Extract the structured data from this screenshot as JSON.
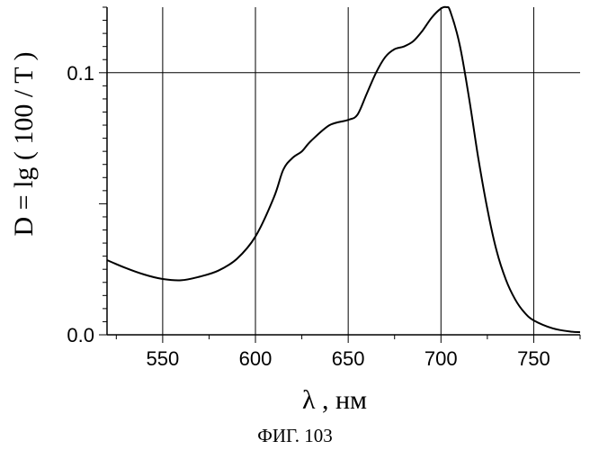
{
  "chart_data": {
    "type": "line",
    "xlabel": "λ , нм",
    "ylabel": "D = lg ( 100 / T )",
    "xlim": [
      520,
      775
    ],
    "ylim": [
      0.0,
      0.125
    ],
    "x_ticks": [
      550,
      600,
      650,
      700,
      750
    ],
    "x_tick_labels": [
      "550",
      "600",
      "650",
      "700",
      "750"
    ],
    "y_ticks": [
      0.0,
      0.1
    ],
    "y_tick_labels": [
      "0.0",
      "0.1"
    ],
    "grid": true,
    "series": [
      {
        "x": [
          520,
          530,
          540,
          550,
          560,
          570,
          580,
          590,
          600,
          610,
          615,
          620,
          625,
          630,
          640,
          650,
          655,
          660,
          665,
          670,
          675,
          680,
          685,
          690,
          695,
          700,
          703,
          705,
          710,
          715,
          720,
          725,
          730,
          735,
          740,
          745,
          750,
          760,
          770,
          775
        ],
        "y": [
          0.0285,
          0.0255,
          0.023,
          0.0213,
          0.0208,
          0.0222,
          0.0245,
          0.029,
          0.0375,
          0.0525,
          0.063,
          0.0675,
          0.07,
          0.074,
          0.08,
          0.082,
          0.084,
          0.092,
          0.1,
          0.106,
          0.109,
          0.11,
          0.112,
          0.116,
          0.121,
          0.1245,
          0.125,
          0.1235,
          0.111,
          0.091,
          0.068,
          0.048,
          0.032,
          0.021,
          0.0135,
          0.0085,
          0.0055,
          0.0025,
          0.0012,
          0.001
        ]
      }
    ]
  },
  "caption": "ФИГ. 103"
}
